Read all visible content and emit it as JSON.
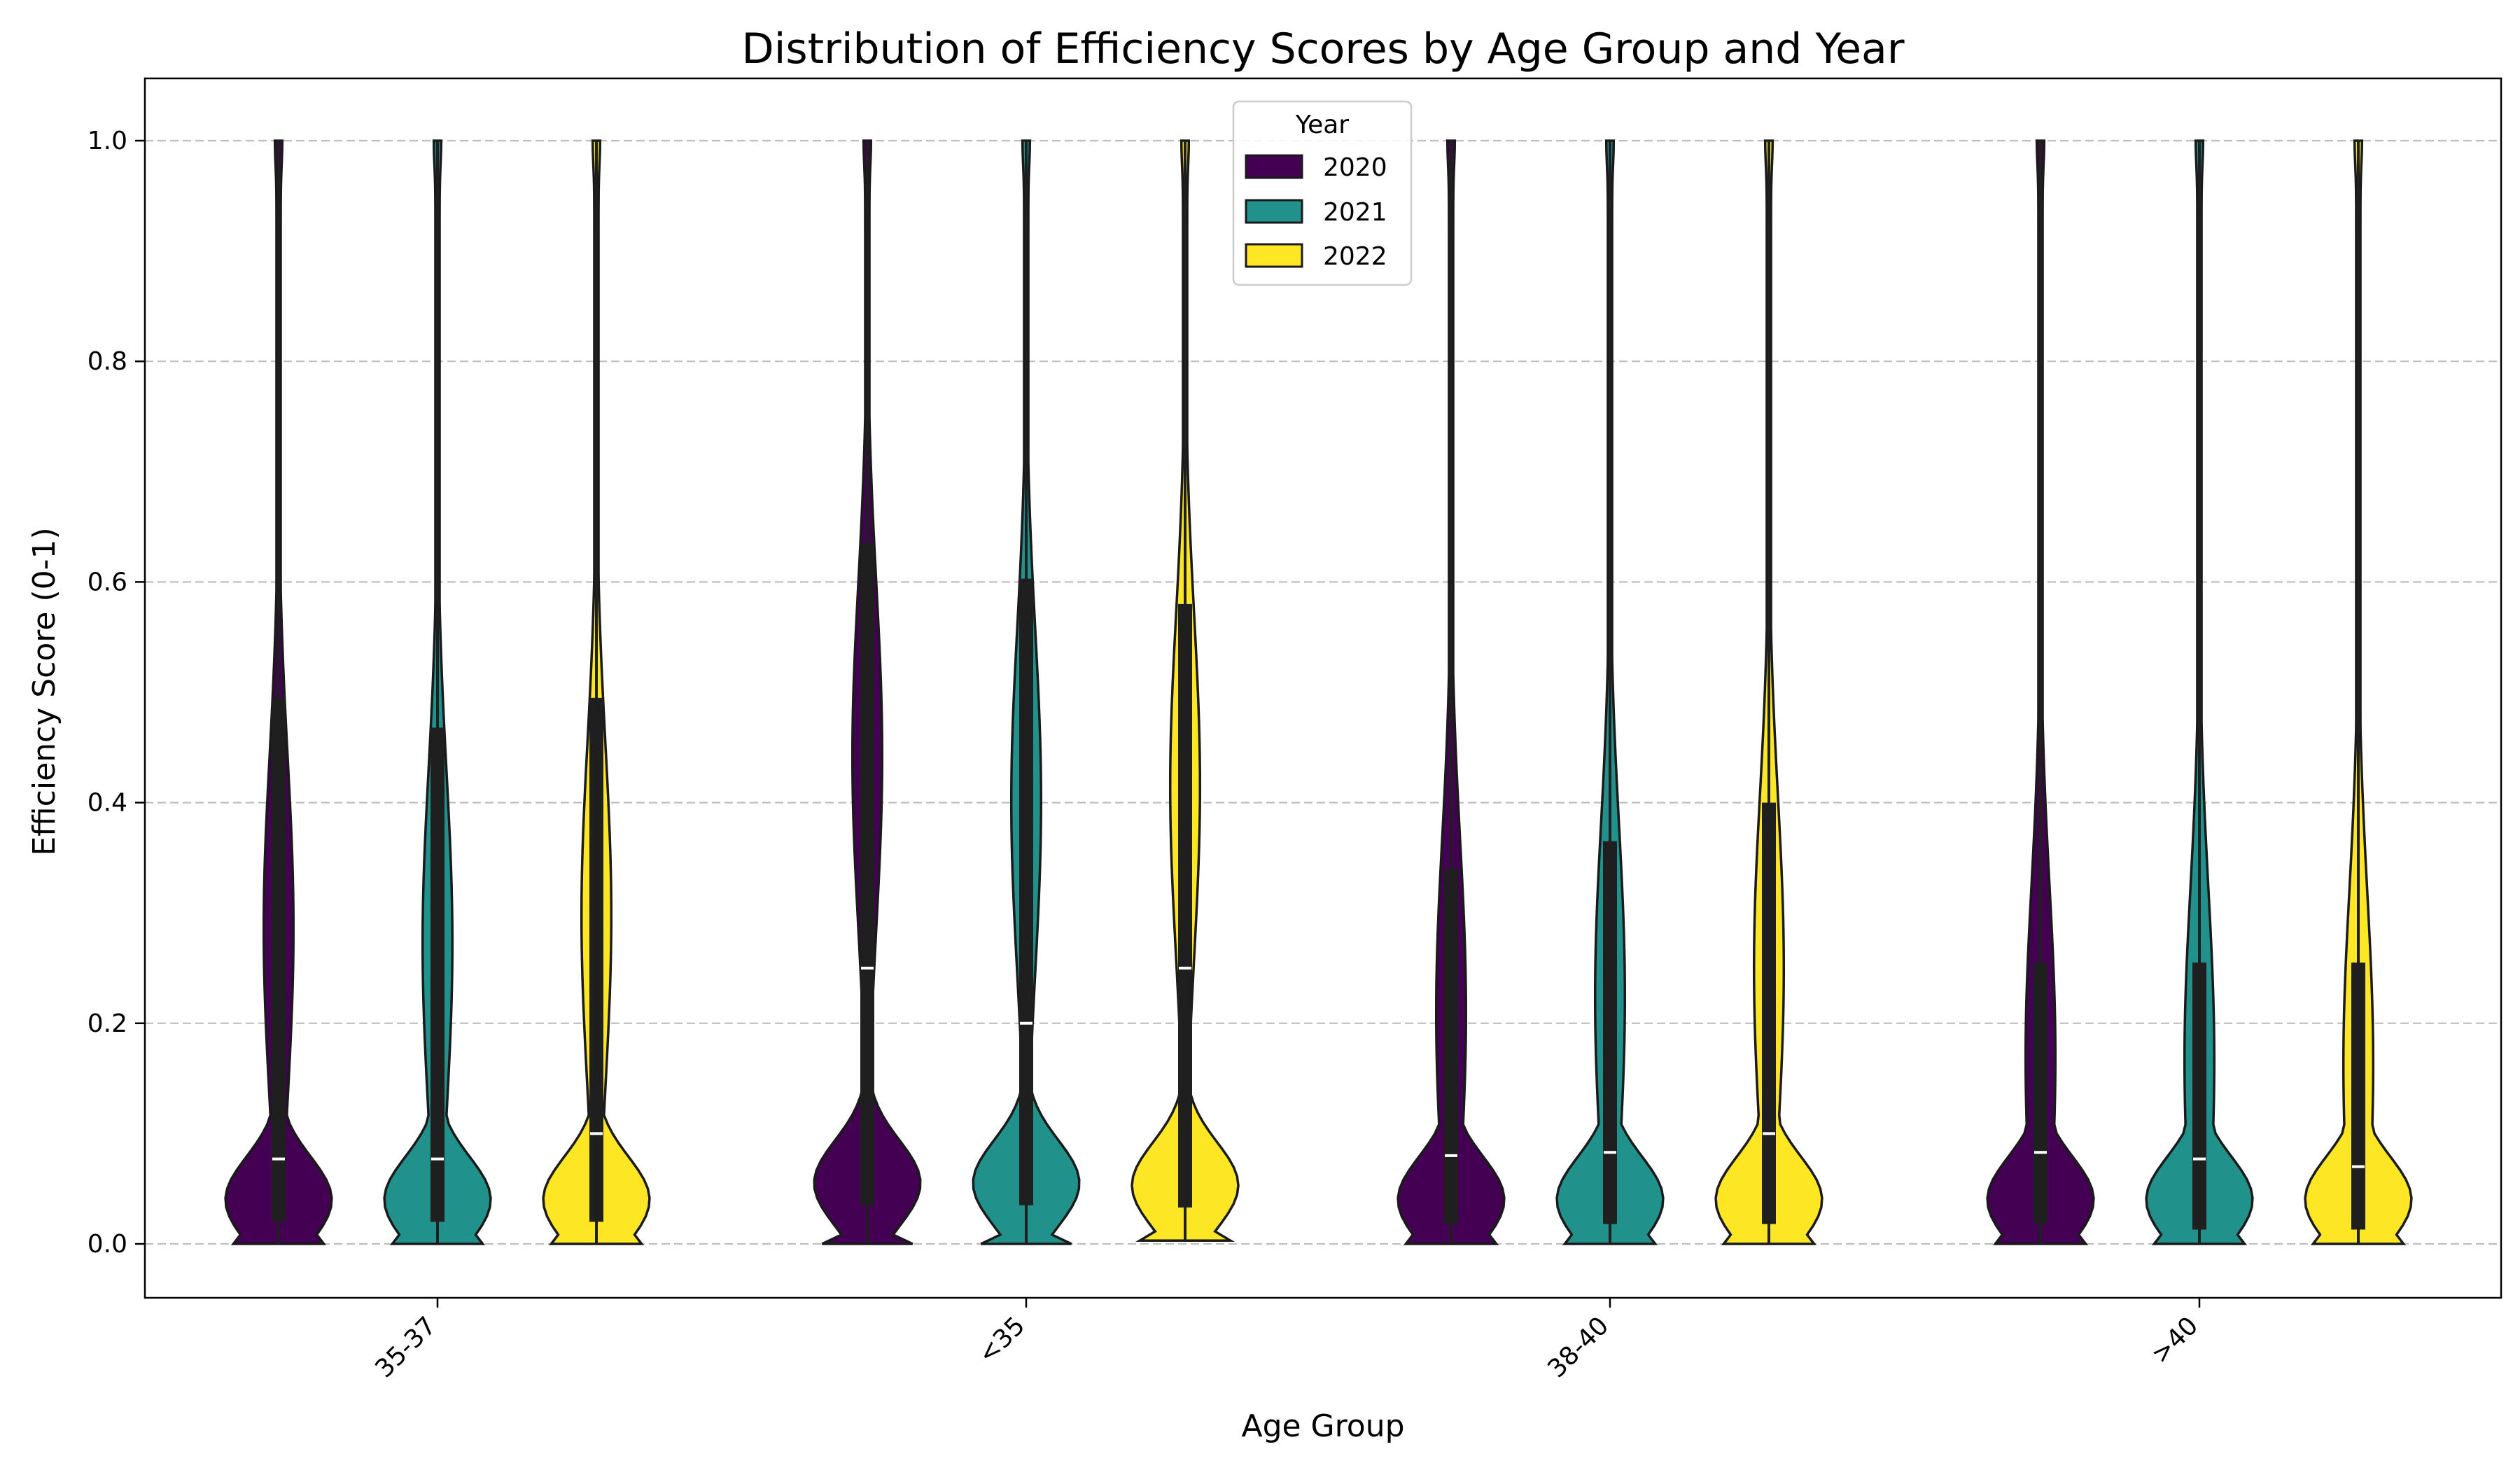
{
  "chart_data": {
    "type": "violin",
    "title": "Distribution of Efficiency Scores by Age Group and Year",
    "xlabel": "Age Group",
    "ylabel": "Efficiency Score (0-1)",
    "ylim": [
      -0.05,
      1.05
    ],
    "yticks": [
      "0.0",
      "0.2",
      "0.4",
      "0.6",
      "0.8",
      "1.0"
    ],
    "grid": "y-dashed",
    "categories": [
      "35-37",
      "<35",
      "38-40",
      ">40"
    ],
    "legend": {
      "title": "Year",
      "placement": "top-center"
    },
    "series": [
      {
        "name": "2020",
        "color": "#440154",
        "stats": [
          {
            "q1": 0.02,
            "median": 0.077,
            "q3": 0.495,
            "min": 0.0,
            "max": 1.0
          },
          {
            "q1": 0.035,
            "median": 0.25,
            "q3": 0.635,
            "min": 0.0,
            "max": 1.0
          },
          {
            "q1": 0.018,
            "median": 0.08,
            "q3": 0.34,
            "min": 0.0,
            "max": 1.0
          },
          {
            "q1": 0.018,
            "median": 0.083,
            "q3": 0.255,
            "min": 0.0,
            "max": 1.0
          }
        ]
      },
      {
        "name": "2021",
        "color": "#21918c",
        "stats": [
          {
            "q1": 0.02,
            "median": 0.077,
            "q3": 0.468,
            "min": 0.0,
            "max": 1.0
          },
          {
            "q1": 0.035,
            "median": 0.2,
            "q3": 0.603,
            "min": 0.0,
            "max": 1.0
          },
          {
            "q1": 0.018,
            "median": 0.083,
            "q3": 0.365,
            "min": 0.0,
            "max": 1.0
          },
          {
            "q1": 0.013,
            "median": 0.077,
            "q3": 0.255,
            "min": 0.0,
            "max": 1.0
          }
        ]
      },
      {
        "name": "2022",
        "color": "#fde725",
        "stats": [
          {
            "q1": 0.02,
            "median": 0.1,
            "q3": 0.495,
            "min": 0.0,
            "max": 1.0
          },
          {
            "q1": 0.033,
            "median": 0.25,
            "q3": 0.58,
            "min": 0.003,
            "max": 1.0
          },
          {
            "q1": 0.018,
            "median": 0.1,
            "q3": 0.4,
            "min": 0.0,
            "max": 1.0
          },
          {
            "q1": 0.013,
            "median": 0.07,
            "q3": 0.255,
            "min": 0.0,
            "max": 1.0
          }
        ]
      }
    ]
  }
}
